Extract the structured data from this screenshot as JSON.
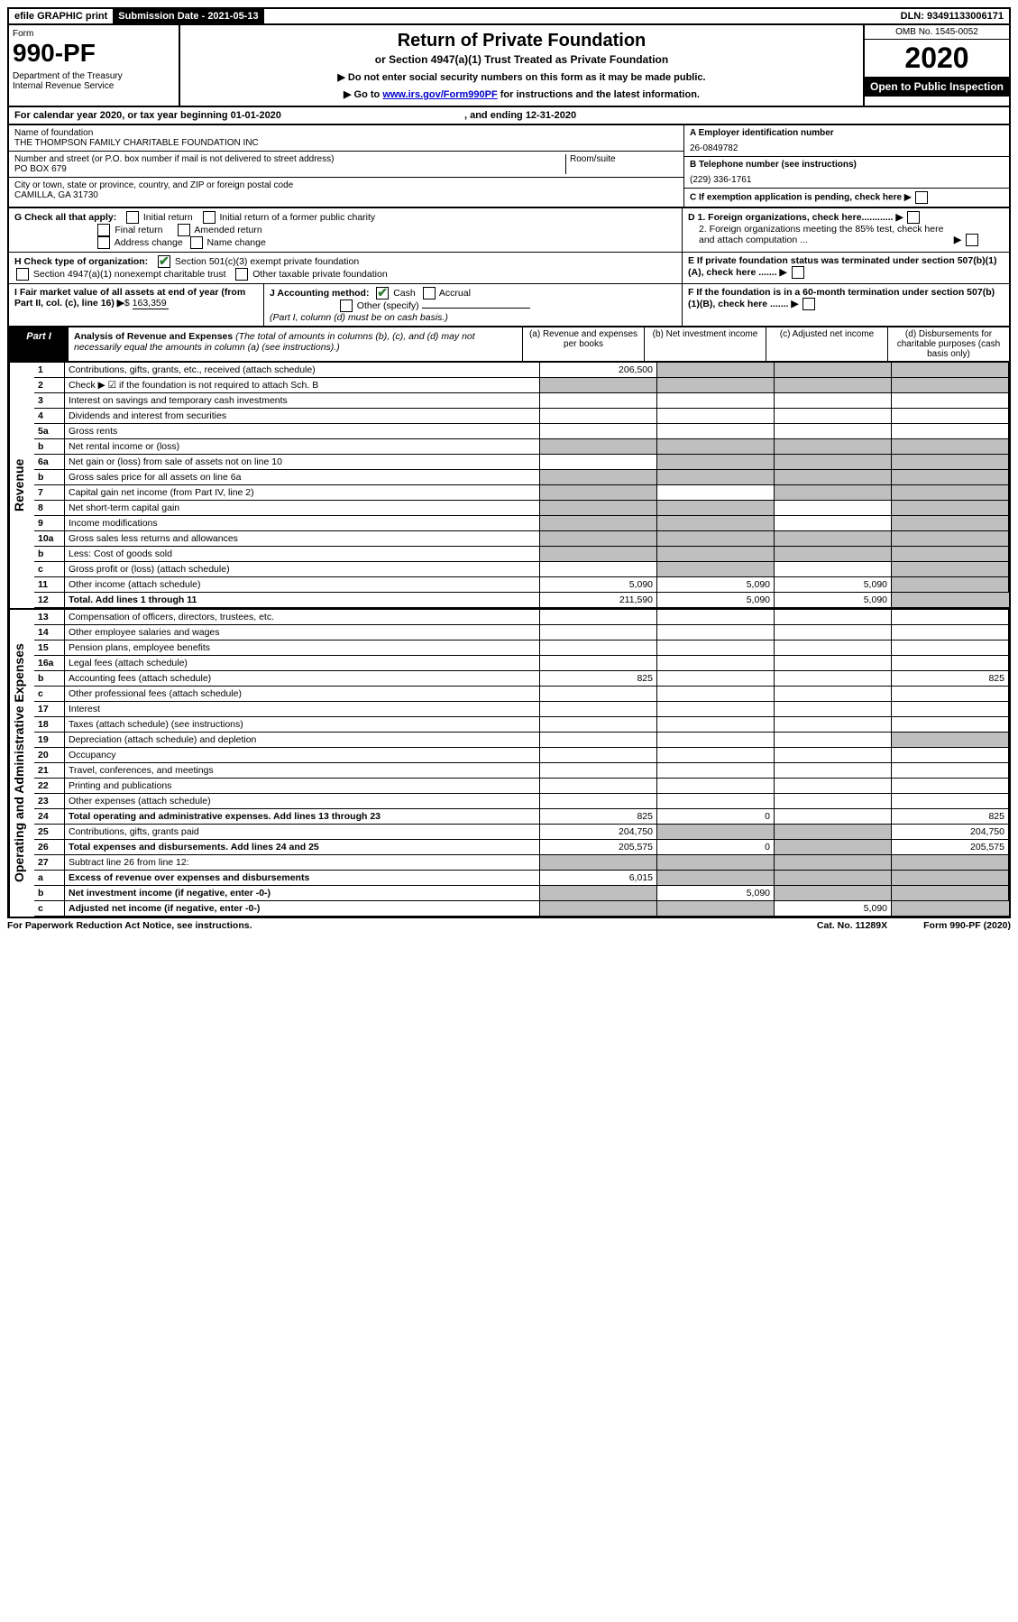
{
  "topbar": {
    "efile": "efile GRAPHIC print",
    "submission_label": "Submission Date - 2021-05-13",
    "dln": "DLN: 93491133006171"
  },
  "header": {
    "form_label": "Form",
    "form_number": "990-PF",
    "dept": "Department of the Treasury\nInternal Revenue Service",
    "title": "Return of Private Foundation",
    "subtitle": "or Section 4947(a)(1) Trust Treated as Private Foundation",
    "note1": "▶ Do not enter social security numbers on this form as it may be made public.",
    "note2_pre": "▶ Go to ",
    "note2_link": "www.irs.gov/Form990PF",
    "note2_post": " for instructions and the latest information.",
    "omb": "OMB No. 1545-0052",
    "year": "2020",
    "open": "Open to Public Inspection"
  },
  "calendar": {
    "text": "For calendar year 2020, or tax year beginning 01-01-2020",
    "ending": ", and ending 12-31-2020"
  },
  "entity": {
    "name_label": "Name of foundation",
    "name": "THE THOMPSON FAMILY CHARITABLE FOUNDATION INC",
    "addr_label": "Number and street (or P.O. box number if mail is not delivered to street address)",
    "addr": "PO BOX 679",
    "room_label": "Room/suite",
    "city_label": "City or town, state or province, country, and ZIP or foreign postal code",
    "city": "CAMILLA, GA  31730",
    "ein_label": "A Employer identification number",
    "ein": "26-0849782",
    "phone_label": "B Telephone number (see instructions)",
    "phone": "(229) 336-1761",
    "c": "C If exemption application is pending, check here",
    "d1": "D 1. Foreign organizations, check here............",
    "d2": "2. Foreign organizations meeting the 85% test, check here and attach computation ...",
    "e": "E  If private foundation status was terminated under section 507(b)(1)(A), check here .......",
    "f": "F  If the foundation is in a 60-month termination under section 507(b)(1)(B), check here .......",
    "g_label": "G Check all that apply:",
    "g_opts": [
      "Initial return",
      "Final return",
      "Address change",
      "Initial return of a former public charity",
      "Amended return",
      "Name change"
    ],
    "h_label": "H Check type of organization:",
    "h1": "Section 501(c)(3) exempt private foundation",
    "h2": "Section 4947(a)(1) nonexempt charitable trust",
    "h3": "Other taxable private foundation",
    "i_label": "I Fair market value of all assets at end of year (from Part II, col. (c), line 16)",
    "i_val": "163,359",
    "j_label": "J Accounting method:",
    "j_cash": "Cash",
    "j_accrual": "Accrual",
    "j_other": "Other (specify)",
    "j_note": "(Part I, column (d) must be on cash basis.)"
  },
  "part1": {
    "label": "Part I",
    "title": "Analysis of Revenue and Expenses",
    "note": "(The total of amounts in columns (b), (c), and (d) may not necessarily equal the amounts in column (a) (see instructions).)",
    "col_a": "(a)   Revenue and expenses per books",
    "col_b": "(b)   Net investment income",
    "col_c": "(c)   Adjusted net income",
    "col_d": "(d)  Disbursements for charitable purposes (cash basis only)"
  },
  "side_labels": {
    "revenue": "Revenue",
    "expenses": "Operating and Administrative Expenses"
  },
  "rows": [
    {
      "n": "1",
      "d": "Contributions, gifts, grants, etc., received (attach schedule)",
      "a": "206,500",
      "bgrey": true,
      "cgrey": true,
      "dgrey": true
    },
    {
      "n": "2",
      "d": "Check ▶ ☑ if the foundation is not required to attach Sch. B",
      "nobord": true,
      "agrey": true,
      "bgrey": true,
      "cgrey": true,
      "dgrey": true
    },
    {
      "n": "3",
      "d": "Interest on savings and temporary cash investments"
    },
    {
      "n": "4",
      "d": "Dividends and interest from securities"
    },
    {
      "n": "5a",
      "d": "Gross rents"
    },
    {
      "n": "b",
      "d": "Net rental income or (loss)",
      "agrey": true,
      "bgrey": true,
      "cgrey": true,
      "dgrey": true
    },
    {
      "n": "6a",
      "d": "Net gain or (loss) from sale of assets not on line 10",
      "bgrey": true,
      "cgrey": true,
      "dgrey": true
    },
    {
      "n": "b",
      "d": "Gross sales price for all assets on line 6a",
      "agrey": true,
      "bgrey": true,
      "cgrey": true,
      "dgrey": true
    },
    {
      "n": "7",
      "d": "Capital gain net income (from Part IV, line 2)",
      "agrey": true,
      "cgrey": true,
      "dgrey": true
    },
    {
      "n": "8",
      "d": "Net short-term capital gain",
      "agrey": true,
      "bgrey": true,
      "dgrey": true
    },
    {
      "n": "9",
      "d": "Income modifications",
      "agrey": true,
      "bgrey": true,
      "dgrey": true
    },
    {
      "n": "10a",
      "d": "Gross sales less returns and allowances",
      "agrey": true,
      "bgrey": true,
      "cgrey": true,
      "dgrey": true
    },
    {
      "n": "b",
      "d": "Less: Cost of goods sold",
      "agrey": true,
      "bgrey": true,
      "cgrey": true,
      "dgrey": true
    },
    {
      "n": "c",
      "d": "Gross profit or (loss) (attach schedule)",
      "bgrey": true,
      "dgrey": true
    },
    {
      "n": "11",
      "d": "Other income (attach schedule)",
      "a": "5,090",
      "b": "5,090",
      "c": "5,090",
      "dgrey": true
    },
    {
      "n": "12",
      "d": "Total. Add lines 1 through 11",
      "bold": true,
      "a": "211,590",
      "b": "5,090",
      "c": "5,090",
      "dgrey": true
    }
  ],
  "exp_rows": [
    {
      "n": "13",
      "d": "Compensation of officers, directors, trustees, etc."
    },
    {
      "n": "14",
      "d": "Other employee salaries and wages"
    },
    {
      "n": "15",
      "d": "Pension plans, employee benefits"
    },
    {
      "n": "16a",
      "d": "Legal fees (attach schedule)"
    },
    {
      "n": "b",
      "d": "Accounting fees (attach schedule)",
      "a": "825",
      "dv": "825"
    },
    {
      "n": "c",
      "d": "Other professional fees (attach schedule)"
    },
    {
      "n": "17",
      "d": "Interest"
    },
    {
      "n": "18",
      "d": "Taxes (attach schedule) (see instructions)"
    },
    {
      "n": "19",
      "d": "Depreciation (attach schedule) and depletion",
      "dgrey": true
    },
    {
      "n": "20",
      "d": "Occupancy"
    },
    {
      "n": "21",
      "d": "Travel, conferences, and meetings"
    },
    {
      "n": "22",
      "d": "Printing and publications"
    },
    {
      "n": "23",
      "d": "Other expenses (attach schedule)"
    },
    {
      "n": "24",
      "d": "Total operating and administrative expenses. Add lines 13 through 23",
      "bold": true,
      "a": "825",
      "b": "0",
      "dv": "825"
    },
    {
      "n": "25",
      "d": "Contributions, gifts, grants paid",
      "a": "204,750",
      "bgrey": true,
      "cgrey": true,
      "dv": "204,750"
    },
    {
      "n": "26",
      "d": "Total expenses and disbursements. Add lines 24 and 25",
      "bold": true,
      "a": "205,575",
      "b": "0",
      "cgrey": true,
      "dv": "205,575"
    },
    {
      "n": "27",
      "d": "Subtract line 26 from line 12:",
      "agrey": true,
      "bgrey": true,
      "cgrey": true,
      "dgrey": true
    },
    {
      "n": "a",
      "d": "Excess of revenue over expenses and disbursements",
      "bold": true,
      "a": "6,015",
      "bgrey": true,
      "cgrey": true,
      "dgrey": true
    },
    {
      "n": "b",
      "d": "Net investment income (if negative, enter -0-)",
      "bold": true,
      "agrey": true,
      "b": "5,090",
      "cgrey": true,
      "dgrey": true
    },
    {
      "n": "c",
      "d": "Adjusted net income (if negative, enter -0-)",
      "bold": true,
      "agrey": true,
      "bgrey": true,
      "c": "5,090",
      "dgrey": true
    }
  ],
  "footer": {
    "left": "For Paperwork Reduction Act Notice, see instructions.",
    "mid": "Cat. No. 11289X",
    "right": "Form 990-PF (2020)"
  },
  "colors": {
    "grey": "#bfbfbf",
    "link": "#0000cc",
    "check": "#2e7d32"
  }
}
